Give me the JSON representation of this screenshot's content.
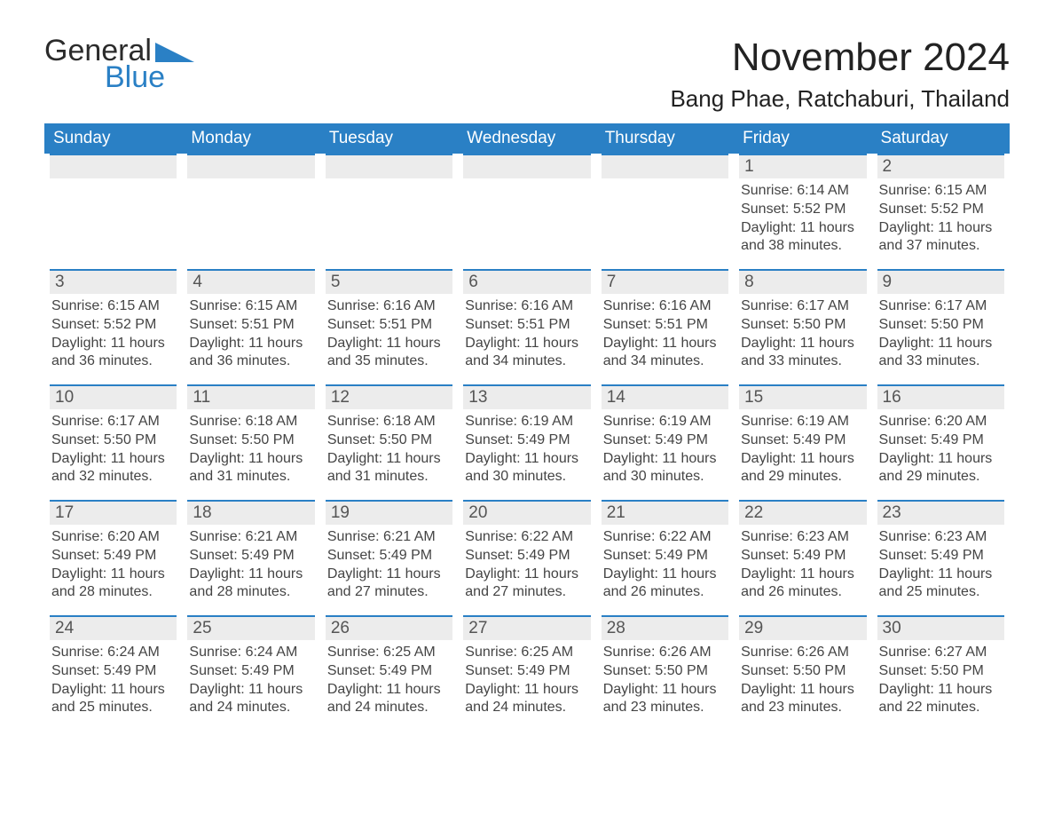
{
  "brand": {
    "word1": "General",
    "word2": "Blue",
    "logo_color": "#2a80c5"
  },
  "title": "November 2024",
  "location": "Bang Phae, Ratchaburi, Thailand",
  "colors": {
    "header_bg": "#2a80c5",
    "row_border": "#2a80c5",
    "daybar_bg": "#ececec",
    "page_bg": "#ffffff",
    "text": "#333333"
  },
  "day_headers": [
    "Sunday",
    "Monday",
    "Tuesday",
    "Wednesday",
    "Thursday",
    "Friday",
    "Saturday"
  ],
  "weeks": [
    [
      null,
      null,
      null,
      null,
      null,
      {
        "n": "1",
        "sunrise": "6:14 AM",
        "sunset": "5:52 PM",
        "daylight": "11 hours and 38 minutes."
      },
      {
        "n": "2",
        "sunrise": "6:15 AM",
        "sunset": "5:52 PM",
        "daylight": "11 hours and 37 minutes."
      }
    ],
    [
      {
        "n": "3",
        "sunrise": "6:15 AM",
        "sunset": "5:52 PM",
        "daylight": "11 hours and 36 minutes."
      },
      {
        "n": "4",
        "sunrise": "6:15 AM",
        "sunset": "5:51 PM",
        "daylight": "11 hours and 36 minutes."
      },
      {
        "n": "5",
        "sunrise": "6:16 AM",
        "sunset": "5:51 PM",
        "daylight": "11 hours and 35 minutes."
      },
      {
        "n": "6",
        "sunrise": "6:16 AM",
        "sunset": "5:51 PM",
        "daylight": "11 hours and 34 minutes."
      },
      {
        "n": "7",
        "sunrise": "6:16 AM",
        "sunset": "5:51 PM",
        "daylight": "11 hours and 34 minutes."
      },
      {
        "n": "8",
        "sunrise": "6:17 AM",
        "sunset": "5:50 PM",
        "daylight": "11 hours and 33 minutes."
      },
      {
        "n": "9",
        "sunrise": "6:17 AM",
        "sunset": "5:50 PM",
        "daylight": "11 hours and 33 minutes."
      }
    ],
    [
      {
        "n": "10",
        "sunrise": "6:17 AM",
        "sunset": "5:50 PM",
        "daylight": "11 hours and 32 minutes."
      },
      {
        "n": "11",
        "sunrise": "6:18 AM",
        "sunset": "5:50 PM",
        "daylight": "11 hours and 31 minutes."
      },
      {
        "n": "12",
        "sunrise": "6:18 AM",
        "sunset": "5:50 PM",
        "daylight": "11 hours and 31 minutes."
      },
      {
        "n": "13",
        "sunrise": "6:19 AM",
        "sunset": "5:49 PM",
        "daylight": "11 hours and 30 minutes."
      },
      {
        "n": "14",
        "sunrise": "6:19 AM",
        "sunset": "5:49 PM",
        "daylight": "11 hours and 30 minutes."
      },
      {
        "n": "15",
        "sunrise": "6:19 AM",
        "sunset": "5:49 PM",
        "daylight": "11 hours and 29 minutes."
      },
      {
        "n": "16",
        "sunrise": "6:20 AM",
        "sunset": "5:49 PM",
        "daylight": "11 hours and 29 minutes."
      }
    ],
    [
      {
        "n": "17",
        "sunrise": "6:20 AM",
        "sunset": "5:49 PM",
        "daylight": "11 hours and 28 minutes."
      },
      {
        "n": "18",
        "sunrise": "6:21 AM",
        "sunset": "5:49 PM",
        "daylight": "11 hours and 28 minutes."
      },
      {
        "n": "19",
        "sunrise": "6:21 AM",
        "sunset": "5:49 PM",
        "daylight": "11 hours and 27 minutes."
      },
      {
        "n": "20",
        "sunrise": "6:22 AM",
        "sunset": "5:49 PM",
        "daylight": "11 hours and 27 minutes."
      },
      {
        "n": "21",
        "sunrise": "6:22 AM",
        "sunset": "5:49 PM",
        "daylight": "11 hours and 26 minutes."
      },
      {
        "n": "22",
        "sunrise": "6:23 AM",
        "sunset": "5:49 PM",
        "daylight": "11 hours and 26 minutes."
      },
      {
        "n": "23",
        "sunrise": "6:23 AM",
        "sunset": "5:49 PM",
        "daylight": "11 hours and 25 minutes."
      }
    ],
    [
      {
        "n": "24",
        "sunrise": "6:24 AM",
        "sunset": "5:49 PM",
        "daylight": "11 hours and 25 minutes."
      },
      {
        "n": "25",
        "sunrise": "6:24 AM",
        "sunset": "5:49 PM",
        "daylight": "11 hours and 24 minutes."
      },
      {
        "n": "26",
        "sunrise": "6:25 AM",
        "sunset": "5:49 PM",
        "daylight": "11 hours and 24 minutes."
      },
      {
        "n": "27",
        "sunrise": "6:25 AM",
        "sunset": "5:49 PM",
        "daylight": "11 hours and 24 minutes."
      },
      {
        "n": "28",
        "sunrise": "6:26 AM",
        "sunset": "5:50 PM",
        "daylight": "11 hours and 23 minutes."
      },
      {
        "n": "29",
        "sunrise": "6:26 AM",
        "sunset": "5:50 PM",
        "daylight": "11 hours and 23 minutes."
      },
      {
        "n": "30",
        "sunrise": "6:27 AM",
        "sunset": "5:50 PM",
        "daylight": "11 hours and 22 minutes."
      }
    ]
  ],
  "labels": {
    "sunrise": "Sunrise: ",
    "sunset": "Sunset: ",
    "daylight": "Daylight: "
  }
}
